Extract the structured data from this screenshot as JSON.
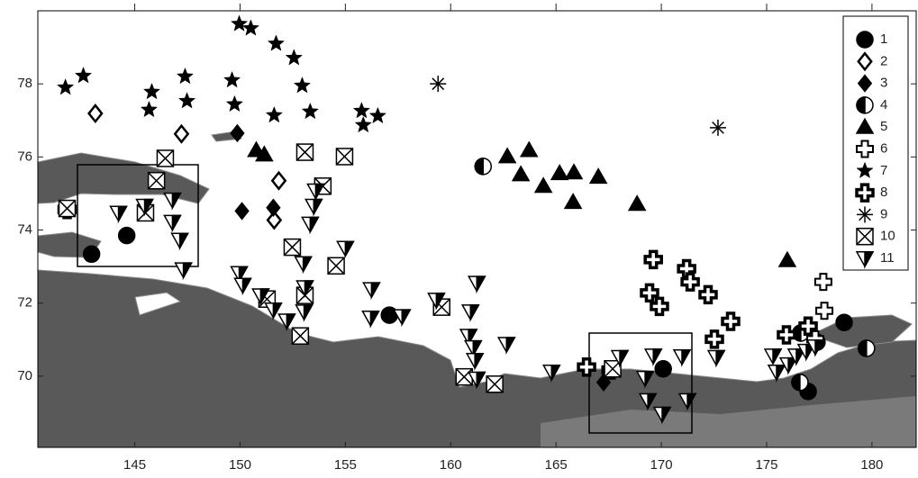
{
  "chart_data": {
    "type": "scatter",
    "xlim": [
      140.4,
      182.1
    ],
    "ylim": [
      68.05,
      80
    ],
    "xticks": [
      145,
      150,
      155,
      160,
      165,
      170,
      175,
      180
    ],
    "yticks": [
      70,
      72,
      74,
      76,
      78
    ],
    "legend": "upper right",
    "series": [
      {
        "name": "1",
        "marker": "circle",
        "color": "#000",
        "x": [
          142.95,
          144.62,
          157.09,
          170.09,
          176.97,
          177.39,
          178.68
        ],
        "y": [
          73.34,
          73.85,
          71.67,
          70.2,
          69.58,
          70.93,
          71.47
        ]
      },
      {
        "name": "2",
        "marker": "open-diamond",
        "color": "#000",
        "x": [
          143.13,
          147.22,
          151.84,
          151.62
        ],
        "y": [
          77.19,
          76.63,
          75.35,
          74.27
        ]
      },
      {
        "name": "3",
        "marker": "diamond",
        "color": "#000",
        "x": [
          149.87,
          150.09,
          151.58,
          167.26
        ],
        "y": [
          76.65,
          74.52,
          74.61,
          69.83
        ]
      },
      {
        "name": "4",
        "marker": "half-circle",
        "color": "#000",
        "x": [
          161.54,
          176.62,
          176.58,
          179.74
        ],
        "y": [
          75.74,
          71.18,
          69.83,
          70.76
        ]
      },
      {
        "name": "5",
        "marker": "triangle",
        "color": "#000",
        "x": [
          150.77,
          151.15,
          162.69,
          163.72,
          163.33,
          164.4,
          165.17,
          165.85,
          165.81,
          167.01,
          168.85,
          175.98
        ],
        "y": [
          76.18,
          76.06,
          76.01,
          76.18,
          75.52,
          75.2,
          75.55,
          75.57,
          74.76,
          75.45,
          74.71,
          73.17
        ]
      },
      {
        "name": "6",
        "marker": "open-cross",
        "color": "#000",
        "x": [
          177.69,
          177.74,
          177.31
        ],
        "y": [
          72.58,
          71.79,
          71.01
        ]
      },
      {
        "name": "7",
        "marker": "star",
        "color": "#000",
        "x": [
          141.71,
          142.56,
          145.81,
          145.68,
          147.39,
          147.48,
          149.62,
          149.74,
          149.96,
          150.51,
          151.71,
          152.56,
          151.62,
          152.95,
          153.33,
          155.77,
          155.85,
          156.54
        ],
        "y": [
          77.9,
          78.22,
          77.78,
          77.29,
          78.2,
          77.53,
          78.1,
          77.44,
          79.64,
          79.52,
          79.1,
          78.71,
          77.14,
          77.95,
          77.24,
          77.26,
          76.87,
          77.12
        ]
      },
      {
        "name": "8",
        "marker": "bold-cross",
        "color": "#000",
        "x": [
          141.79,
          169.62,
          171.2,
          171.37,
          172.22,
          169.44,
          169.91,
          173.29,
          172.52,
          166.45,
          167.61,
          175.94,
          176.97
        ],
        "y": [
          74.56,
          73.19,
          72.94,
          72.58,
          72.23,
          72.28,
          71.91,
          71.5,
          71.01,
          70.25,
          70.17,
          71.13,
          71.37
        ]
      },
      {
        "name": "9",
        "marker": "asterisk",
        "color": "#000",
        "x": [
          159.4,
          172.69
        ],
        "y": [
          78.0,
          76.8
        ]
      },
      {
        "name": "10",
        "marker": "box-x",
        "color": "#000",
        "x": [
          146.45,
          146.03,
          141.79,
          145.51,
          153.08,
          154.96,
          153.93,
          152.48,
          154.56,
          153.08,
          151.28,
          152.86,
          159.57,
          160.64,
          162.09,
          167.69
        ],
        "y": [
          75.96,
          75.35,
          74.59,
          74.47,
          76.13,
          76.01,
          75.2,
          73.53,
          73.02,
          72.21,
          72.11,
          71.1,
          71.89,
          69.98,
          69.78,
          70.2
        ]
      },
      {
        "name": "11",
        "marker": "half-down-triangle",
        "color": "#000",
        "x": [
          144.23,
          145.47,
          146.79,
          146.79,
          147.14,
          147.31,
          149.96,
          150.13,
          150.98,
          151.58,
          152.22,
          153.0,
          153.08,
          153.04,
          153.33,
          153.5,
          153.59,
          155.0,
          156.24,
          156.2,
          157.69,
          159.32,
          161.24,
          160.94,
          160.85,
          161.07,
          161.15,
          161.24,
          162.65,
          164.79,
          168.03,
          169.62,
          170.98,
          169.23,
          169.36,
          170.04,
          171.24,
          172.61,
          175.3,
          175.47,
          176.03,
          176.41,
          176.88,
          177.31
        ],
        "y": [
          74.47,
          74.66,
          74.22,
          74.83,
          73.73,
          72.92,
          72.82,
          72.5,
          72.21,
          71.82,
          71.52,
          73.09,
          72.43,
          71.77,
          74.17,
          74.66,
          75.08,
          73.51,
          72.38,
          71.6,
          71.64,
          72.09,
          72.55,
          71.77,
          71.1,
          70.79,
          70.44,
          69.93,
          70.88,
          70.12,
          70.52,
          70.56,
          70.54,
          69.95,
          69.34,
          68.97,
          69.34,
          70.52,
          70.56,
          70.12,
          70.32,
          70.56,
          70.69,
          70.81
        ]
      }
    ]
  }
}
